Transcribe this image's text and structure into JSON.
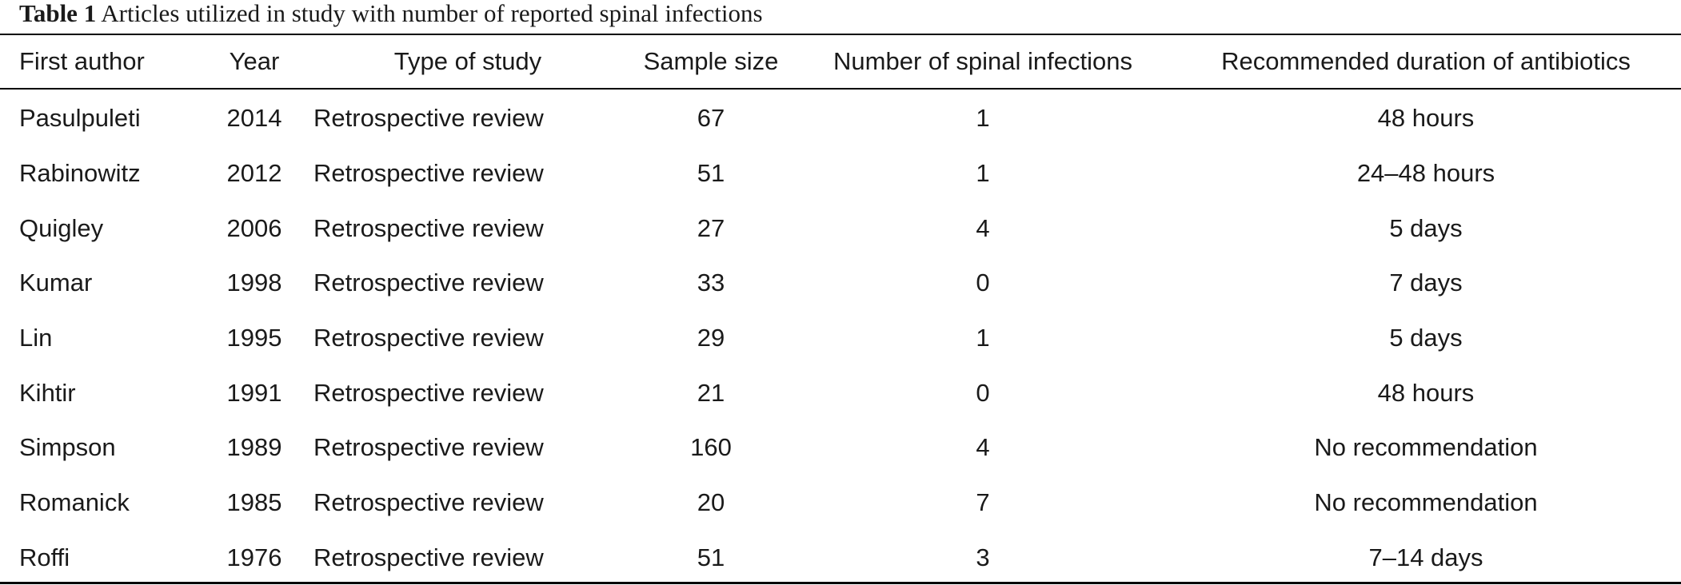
{
  "caption": {
    "label": "Table 1",
    "text": "Articles utilized in study with number of reported spinal infections"
  },
  "table": {
    "headers": {
      "author": "First author",
      "year": "Year",
      "study_type": "Type of study",
      "sample_size": "Sample size",
      "infections": "Number of spinal infections",
      "duration": "Recommended duration of antibiotics"
    },
    "rows": [
      {
        "author": "Pasulpuleti",
        "year": "2014",
        "study_type": "Retrospective review",
        "sample_size": "67",
        "infections": "1",
        "duration": "48 hours"
      },
      {
        "author": "Rabinowitz",
        "year": "2012",
        "study_type": "Retrospective review",
        "sample_size": "51",
        "infections": "1",
        "duration": "24–48 hours"
      },
      {
        "author": "Quigley",
        "year": "2006",
        "study_type": "Retrospective review",
        "sample_size": "27",
        "infections": "4",
        "duration": "5 days"
      },
      {
        "author": "Kumar",
        "year": "1998",
        "study_type": "Retrospective review",
        "sample_size": "33",
        "infections": "0",
        "duration": "7 days"
      },
      {
        "author": "Lin",
        "year": "1995",
        "study_type": "Retrospective review",
        "sample_size": "29",
        "infections": "1",
        "duration": "5 days"
      },
      {
        "author": "Kihtir",
        "year": "1991",
        "study_type": "Retrospective review",
        "sample_size": "21",
        "infections": "0",
        "duration": "48 hours"
      },
      {
        "author": "Simpson",
        "year": "1989",
        "study_type": "Retrospective review",
        "sample_size": "160",
        "infections": "4",
        "duration": "No recommendation"
      },
      {
        "author": "Romanick",
        "year": "1985",
        "study_type": "Retrospective review",
        "sample_size": "20",
        "infections": "7",
        "duration": "No recommendation"
      },
      {
        "author": "Roffi",
        "year": "1976",
        "study_type": "Retrospective review",
        "sample_size": "51",
        "infections": "3",
        "duration": "7–14 days"
      }
    ]
  }
}
